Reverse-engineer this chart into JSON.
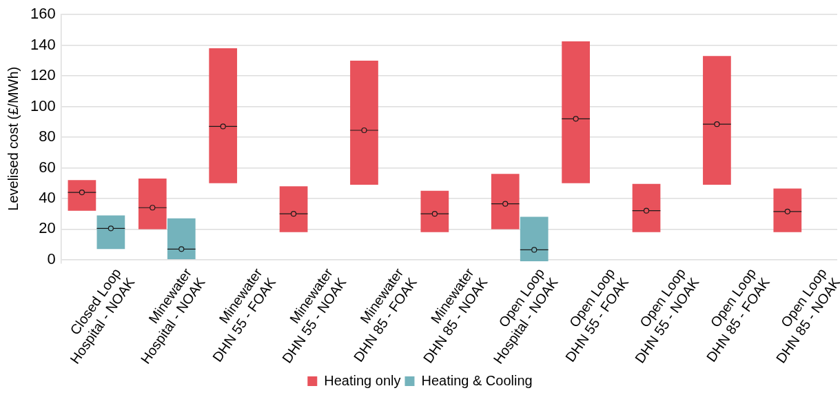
{
  "chart_data": {
    "type": "box",
    "categories": [
      "Closed Loop\nHospital - NOAK",
      "Minewater\nHospital - NOAK",
      "Minewater\nDHN 55 - FOAK",
      "Minewater\nDHN 55 - NOAK",
      "Minewater\nDHN 85 - FOAK",
      "Minewater\nDHN 85 - NOAK",
      "Open Loop\nHospital - NOAK",
      "Open Loop\nDHN 55 - FOAK",
      "Open Loop\nDHN 55 - NOAK",
      "Open Loop\nDHN 85 - FOAK",
      "Open Loop\nDHN 85 - NOAK"
    ],
    "series": [
      {
        "name": "Heating only",
        "color": "#e8525b",
        "boxes": [
          {
            "low": 32,
            "q1": 32,
            "median": 44,
            "q3": 52,
            "high": 52,
            "mean": 44
          },
          {
            "low": 20,
            "q1": 20,
            "median": 34,
            "q3": 53,
            "high": 53,
            "mean": 34
          },
          {
            "low": 50,
            "q1": 50,
            "median": 87,
            "q3": 138,
            "high": 138,
            "mean": 87
          },
          {
            "low": 18,
            "q1": 18,
            "median": 30,
            "q3": 48,
            "high": 48,
            "mean": 30
          },
          {
            "low": 49,
            "q1": 49,
            "median": 84.5,
            "q3": 130,
            "high": 130,
            "mean": 84.5
          },
          {
            "low": 18,
            "q1": 18,
            "median": 30,
            "q3": 45,
            "high": 45,
            "mean": 30
          },
          {
            "low": 20,
            "q1": 20,
            "median": 36.5,
            "q3": 56,
            "high": 56,
            "mean": 36.5
          },
          {
            "low": 50,
            "q1": 50,
            "median": 92,
            "q3": 142.5,
            "high": 142.5,
            "mean": 92
          },
          {
            "low": 18,
            "q1": 18,
            "median": 32,
            "q3": 49.5,
            "high": 49.5,
            "mean": 32
          },
          {
            "low": 49,
            "q1": 49,
            "median": 88.5,
            "q3": 133,
            "high": 133,
            "mean": 88.5
          },
          {
            "low": 18,
            "q1": 18,
            "median": 31.5,
            "q3": 46.5,
            "high": 46.5,
            "mean": 31.5
          }
        ]
      },
      {
        "name": "Heating & Cooling",
        "color": "#74b3bc",
        "x": [
          "Closed Loop\nHospital - NOAK",
          "Minewater\nHospital - NOAK",
          "Open Loop\nHospital - NOAK"
        ],
        "boxes": [
          {
            "low": 7,
            "q1": 7,
            "median": 20.5,
            "q3": 29,
            "high": 29,
            "mean": 20.5
          },
          {
            "low": 0,
            "q1": 0,
            "median": 7,
            "q3": 27,
            "high": 27,
            "mean": 7
          },
          {
            "low": -1,
            "q1": -1,
            "median": 6.5,
            "q3": 28,
            "high": 28,
            "mean": 6.5
          }
        ]
      }
    ],
    "ylabel": "Levelised cost (£/MWh)",
    "ylim": [
      -2,
      160
    ],
    "yticks": [
      0,
      20,
      40,
      60,
      80,
      100,
      120,
      140,
      160
    ],
    "grid": "y",
    "legend": "bottom",
    "marker": "circle"
  }
}
